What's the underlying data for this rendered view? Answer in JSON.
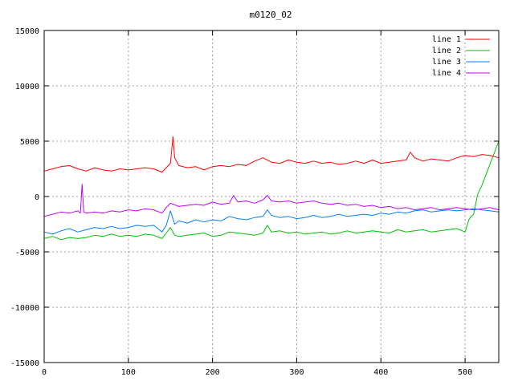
{
  "chart_data": {
    "type": "line",
    "title": "m0120_02",
    "xlabel": "",
    "ylabel": "",
    "xlim": [
      0,
      540
    ],
    "ylim": [
      -15000,
      15000
    ],
    "grid": true,
    "legend_position": "top-right",
    "x_ticks": [
      "0",
      "100",
      "200",
      "300",
      "400",
      "500"
    ],
    "y_ticks": [
      "15000",
      "10000",
      "5000",
      "0",
      "-5000",
      "-10000",
      "-15000"
    ],
    "series": [
      {
        "name": "line 1",
        "color": "#ff0000",
        "x": [
          0,
          10,
          20,
          30,
          40,
          50,
          60,
          70,
          80,
          90,
          100,
          110,
          120,
          130,
          140,
          145,
          150,
          153,
          155,
          160,
          170,
          180,
          190,
          200,
          210,
          220,
          230,
          240,
          250,
          260,
          270,
          280,
          290,
          300,
          310,
          320,
          330,
          340,
          350,
          360,
          370,
          380,
          390,
          400,
          410,
          420,
          430,
          435,
          440,
          450,
          460,
          470,
          480,
          490,
          500,
          510,
          520,
          530,
          540
        ],
        "y": [
          2300,
          2500,
          2700,
          2800,
          2500,
          2300,
          2600,
          2400,
          2300,
          2500,
          2400,
          2500,
          2600,
          2500,
          2200,
          2600,
          3000,
          5400,
          3500,
          2800,
          2600,
          2700,
          2400,
          2700,
          2800,
          2700,
          2900,
          2800,
          3200,
          3500,
          3100,
          3000,
          3300,
          3100,
          3000,
          3200,
          3000,
          3100,
          2900,
          3000,
          3200,
          3000,
          3300,
          3000,
          3100,
          3200,
          3300,
          4000,
          3500,
          3200,
          3400,
          3300,
          3200,
          3500,
          3700,
          3600,
          3800,
          3700,
          3500
        ]
      },
      {
        "name": "line 2",
        "color": "#00c000",
        "x": [
          0,
          10,
          20,
          30,
          40,
          50,
          60,
          70,
          80,
          90,
          100,
          110,
          120,
          130,
          140,
          145,
          150,
          155,
          160,
          170,
          180,
          190,
          200,
          210,
          220,
          230,
          240,
          250,
          260,
          265,
          270,
          280,
          290,
          300,
          310,
          320,
          330,
          340,
          350,
          360,
          370,
          380,
          390,
          400,
          410,
          420,
          430,
          440,
          450,
          460,
          470,
          480,
          490,
          500,
          505,
          510,
          515,
          520,
          525,
          530,
          535,
          540
        ],
        "y": [
          -3800,
          -3600,
          -3900,
          -3700,
          -3800,
          -3700,
          -3500,
          -3600,
          -3400,
          -3600,
          -3500,
          -3600,
          -3400,
          -3500,
          -3800,
          -3300,
          -2800,
          -3500,
          -3600,
          -3500,
          -3400,
          -3300,
          -3600,
          -3500,
          -3200,
          -3300,
          -3400,
          -3500,
          -3300,
          -2600,
          -3200,
          -3100,
          -3300,
          -3200,
          -3400,
          -3300,
          -3200,
          -3400,
          -3300,
          -3100,
          -3300,
          -3200,
          -3100,
          -3200,
          -3300,
          -3000,
          -3200,
          -3100,
          -3000,
          -3200,
          -3100,
          -3000,
          -2900,
          -3200,
          -2000,
          -1600,
          200,
          1000,
          2000,
          3000,
          4000,
          5000
        ]
      },
      {
        "name": "line 3",
        "color": "#0080ff",
        "x": [
          0,
          10,
          20,
          30,
          40,
          50,
          60,
          70,
          80,
          90,
          100,
          110,
          120,
          130,
          140,
          145,
          150,
          155,
          160,
          170,
          180,
          190,
          200,
          210,
          220,
          230,
          240,
          250,
          260,
          265,
          270,
          280,
          290,
          300,
          310,
          320,
          330,
          340,
          350,
          360,
          370,
          380,
          390,
          400,
          410,
          420,
          430,
          440,
          450,
          460,
          470,
          480,
          490,
          500,
          510,
          520,
          530,
          540
        ],
        "y": [
          -3200,
          -3400,
          -3100,
          -2900,
          -3200,
          -3000,
          -2800,
          -2900,
          -2700,
          -2900,
          -2800,
          -2600,
          -2700,
          -2600,
          -3200,
          -2600,
          -1300,
          -2500,
          -2200,
          -2400,
          -2100,
          -2300,
          -2100,
          -2200,
          -1800,
          -2000,
          -2100,
          -1900,
          -1800,
          -1200,
          -1700,
          -1900,
          -1800,
          -2000,
          -1900,
          -1700,
          -1900,
          -1800,
          -1600,
          -1800,
          -1700,
          -1600,
          -1700,
          -1500,
          -1600,
          -1400,
          -1500,
          -1300,
          -1200,
          -1400,
          -1300,
          -1200,
          -1300,
          -1200,
          -1100,
          -1200,
          -1300,
          -1400
        ]
      },
      {
        "name": "line 4",
        "color": "#c000ff",
        "x": [
          0,
          10,
          20,
          30,
          40,
          43,
          45,
          47,
          50,
          60,
          70,
          80,
          90,
          100,
          110,
          120,
          130,
          140,
          145,
          150,
          160,
          170,
          180,
          190,
          200,
          210,
          220,
          225,
          230,
          240,
          250,
          260,
          265,
          270,
          280,
          290,
          300,
          310,
          320,
          330,
          340,
          350,
          360,
          370,
          380,
          390,
          400,
          410,
          420,
          430,
          440,
          450,
          460,
          470,
          480,
          490,
          500,
          510,
          520,
          530,
          540
        ],
        "y": [
          -1800,
          -1600,
          -1400,
          -1500,
          -1300,
          -1500,
          1100,
          -1400,
          -1500,
          -1400,
          -1500,
          -1300,
          -1400,
          -1200,
          -1300,
          -1100,
          -1200,
          -1500,
          -1000,
          -600,
          -900,
          -800,
          -700,
          -800,
          -500,
          -700,
          -600,
          100,
          -500,
          -400,
          -600,
          -300,
          100,
          -400,
          -500,
          -400,
          -600,
          -500,
          -400,
          -600,
          -700,
          -600,
          -800,
          -700,
          -900,
          -800,
          -1000,
          -900,
          -1100,
          -1000,
          -1200,
          -1100,
          -1000,
          -1200,
          -1100,
          -1000,
          -1100,
          -1200,
          -1100,
          -1000,
          -1200
        ]
      }
    ]
  }
}
